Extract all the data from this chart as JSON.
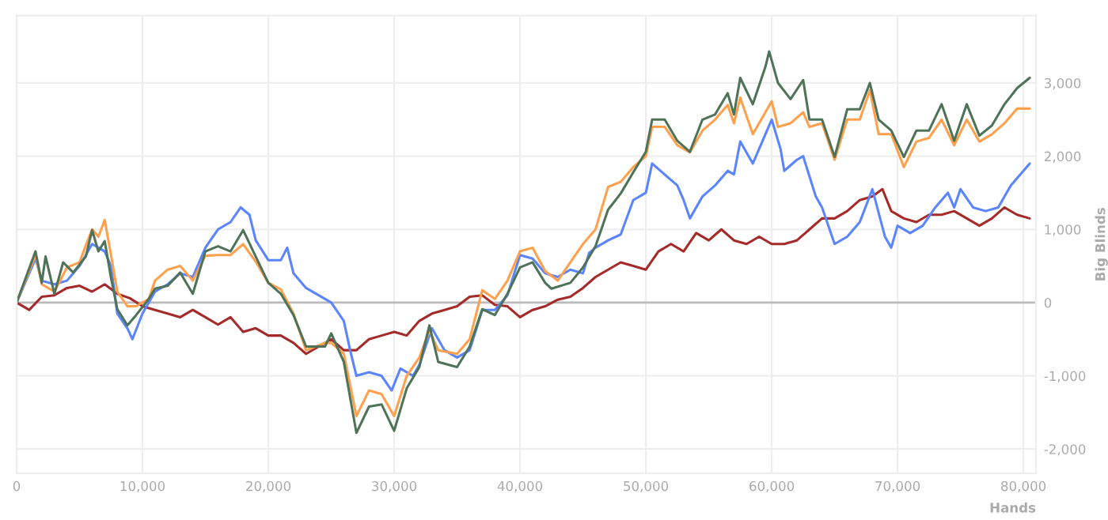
{
  "chart_data": {
    "type": "line",
    "xlabel": "Hands",
    "ylabel": "Big Blinds",
    "xlim": [
      0,
      81000
    ],
    "ylim": [
      -2330,
      3920
    ],
    "xticks": [
      0,
      {
        "value": 10000,
        "label": "10,000"
      },
      {
        "value": 20000,
        "label": "20,000"
      },
      {
        "value": 30000,
        "label": "30,000"
      },
      {
        "value": 40000,
        "label": "40,000"
      },
      {
        "value": 50000,
        "label": "50,000"
      },
      {
        "value": 60000,
        "label": "60,000"
      },
      {
        "value": 70000,
        "label": "70,000"
      },
      {
        "value": 80000,
        "label": "80,000"
      }
    ],
    "yticks": [
      {
        "value": -2000,
        "label": "-2,000"
      },
      {
        "value": -1000,
        "label": "-1,000"
      },
      0,
      {
        "value": 1000,
        "label": "1,000"
      },
      {
        "value": 2000,
        "label": "2,000"
      },
      {
        "value": 3000,
        "label": "3,000"
      }
    ],
    "grid": true,
    "legend": false,
    "ref_lines": [
      {
        "axis": "y",
        "value": 0,
        "color": "#bbbbbb"
      }
    ],
    "series": [
      {
        "color": "#a52a2a",
        "x": [
          0,
          1000,
          2000,
          3000,
          4000,
          5000,
          6000,
          7000,
          8000,
          9000,
          10000,
          11000,
          12000,
          13000,
          14000,
          15000,
          16000,
          17000,
          18000,
          19000,
          20000,
          21000,
          22000,
          23000,
          24000,
          25000,
          26000,
          27000,
          28000,
          29000,
          30000,
          31000,
          32000,
          33000,
          34000,
          35000,
          36000,
          37000,
          38000,
          39000,
          40000,
          41000,
          42000,
          43000,
          44000,
          45000,
          46000,
          47000,
          48000,
          49000,
          50000,
          51000,
          52000,
          53000,
          54000,
          55000,
          56000,
          57000,
          58000,
          59000,
          60000,
          61000,
          62000,
          63000,
          64000,
          65000,
          66000,
          67000,
          68000,
          68800,
          69500,
          70500,
          71500,
          72500,
          73500,
          74500,
          75500,
          76500,
          77500,
          78500,
          79500,
          80500
        ],
        "values": [
          0,
          -100,
          80,
          100,
          200,
          230,
          150,
          250,
          120,
          60,
          -50,
          -100,
          -150,
          -200,
          -100,
          -200,
          -300,
          -200,
          -400,
          -350,
          -450,
          -450,
          -550,
          -700,
          -600,
          -500,
          -650,
          -650,
          -500,
          -450,
          -400,
          -450,
          -250,
          -150,
          -100,
          -50,
          80,
          100,
          -30,
          -50,
          -200,
          -100,
          -50,
          40,
          80,
          200,
          350,
          450,
          550,
          500,
          450,
          700,
          800,
          700,
          950,
          850,
          1000,
          850,
          800,
          900,
          800,
          800,
          850,
          1000,
          1150,
          1150,
          1250,
          1400,
          1450,
          1550,
          1250,
          1150,
          1100,
          1200,
          1200,
          1250,
          1150,
          1050,
          1150,
          1300,
          1200,
          1150
        ]
      },
      {
        "color": "#5b84ff",
        "x": [
          0,
          1500,
          2000,
          3000,
          4000,
          5000,
          5500,
          6000,
          6500,
          7000,
          7500,
          8000,
          8800,
          9200,
          10000,
          11000,
          12000,
          13000,
          14000,
          15000,
          16000,
          17000,
          17800,
          18500,
          19000,
          20000,
          21000,
          21500,
          22000,
          23000,
          24000,
          25000,
          26000,
          26500,
          27000,
          28000,
          29000,
          29800,
          30500,
          31500,
          32000,
          33000,
          34000,
          35000,
          36000,
          37000,
          38000,
          39000,
          40000,
          41000,
          42000,
          43000,
          44000,
          45000,
          45500,
          46000,
          47000,
          48000,
          49000,
          50000,
          50500,
          51500,
          52500,
          53000,
          53500,
          54500,
          55500,
          56500,
          57000,
          57500,
          58500,
          59500,
          60000,
          60700,
          61000,
          62000,
          62500,
          63500,
          64000,
          65000,
          66000,
          67000,
          68000,
          69000,
          69500,
          70000,
          71000,
          72000,
          73000,
          74000,
          74500,
          75000,
          76000,
          77000,
          78000,
          79000,
          80500
        ],
        "values": [
          0,
          600,
          300,
          250,
          300,
          500,
          650,
          800,
          750,
          700,
          500,
          -150,
          -350,
          -500,
          -150,
          150,
          250,
          400,
          350,
          750,
          1000,
          1100,
          1300,
          1200,
          850,
          580,
          580,
          750,
          400,
          200,
          100,
          0,
          -250,
          -650,
          -1000,
          -950,
          -1000,
          -1200,
          -900,
          -1000,
          -850,
          -350,
          -650,
          -750,
          -650,
          -100,
          -100,
          100,
          650,
          600,
          400,
          350,
          450,
          400,
          680,
          750,
          850,
          930,
          1400,
          1500,
          1900,
          1750,
          1600,
          1400,
          1150,
          1450,
          1600,
          1800,
          1750,
          2200,
          1900,
          2300,
          2500,
          2100,
          1800,
          1950,
          2000,
          1450,
          1300,
          800,
          900,
          1100,
          1550,
          900,
          750,
          1050,
          950,
          1050,
          1300,
          1500,
          1300,
          1550,
          1300,
          1250,
          1300,
          1600,
          1900
        ]
      },
      {
        "color": "#ffa04d",
        "x": [
          0,
          1500,
          2000,
          3000,
          4000,
          5000,
          5500,
          6000,
          6500,
          7000,
          7500,
          8000,
          8800,
          9500,
          10500,
          11000,
          12000,
          13000,
          14000,
          15000,
          16000,
          17000,
          18000,
          19000,
          20000,
          21000,
          22000,
          23000,
          24500,
          25000,
          26000,
          27000,
          28000,
          29000,
          30000,
          31000,
          32000,
          32800,
          33500,
          35000,
          36000,
          37000,
          38000,
          39000,
          40000,
          41000,
          42000,
          43000,
          44000,
          45000,
          46000,
          47000,
          48000,
          49000,
          50000,
          50500,
          51500,
          52500,
          53500,
          54500,
          55500,
          56500,
          57000,
          57500,
          58500,
          59500,
          60000,
          60500,
          61500,
          62500,
          63000,
          64000,
          65000,
          66000,
          67000,
          67800,
          68500,
          69500,
          70500,
          71500,
          72500,
          73500,
          74500,
          75500,
          76500,
          77500,
          78500,
          79500,
          80500
        ],
        "values": [
          0,
          650,
          250,
          150,
          480,
          550,
          780,
          1000,
          900,
          1130,
          650,
          150,
          -50,
          -50,
          50,
          300,
          450,
          500,
          300,
          640,
          650,
          650,
          800,
          560,
          270,
          180,
          -150,
          -650,
          -550,
          -550,
          -700,
          -1550,
          -1200,
          -1250,
          -1550,
          -1000,
          -750,
          -380,
          -650,
          -700,
          -500,
          170,
          50,
          300,
          700,
          750,
          430,
          300,
          550,
          800,
          1000,
          1580,
          1650,
          1850,
          2000,
          2400,
          2400,
          2150,
          2050,
          2350,
          2500,
          2700,
          2450,
          2800,
          2300,
          2600,
          2750,
          2400,
          2450,
          2600,
          2400,
          2450,
          1950,
          2500,
          2500,
          2900,
          2300,
          2300,
          1850,
          2200,
          2250,
          2500,
          2150,
          2500,
          2200,
          2300,
          2450,
          2650,
          2650
        ]
      },
      {
        "color": "#4f7358",
        "x": [
          0,
          1500,
          2000,
          2300,
          3000,
          3700,
          4500,
          5500,
          6000,
          6500,
          7000,
          7500,
          8000,
          8800,
          9500,
          10500,
          11000,
          12000,
          13000,
          14000,
          15000,
          16000,
          17000,
          18000,
          19000,
          20000,
          21000,
          22000,
          23000,
          24500,
          25000,
          26000,
          27000,
          28000,
          29000,
          30000,
          31000,
          32000,
          32800,
          33500,
          35000,
          36000,
          37000,
          38000,
          39000,
          40000,
          41000,
          42000,
          42500,
          44000,
          45000,
          46000,
          47000,
          48000,
          49000,
          50000,
          50500,
          51500,
          52500,
          53500,
          54500,
          55500,
          56500,
          57000,
          57500,
          58500,
          59500,
          59800,
          60500,
          61500,
          62500,
          63000,
          64000,
          65000,
          66000,
          67000,
          67800,
          68500,
          69500,
          70500,
          71500,
          72500,
          73500,
          74500,
          75500,
          76500,
          77500,
          78500,
          79500,
          80500
        ],
        "values": [
          0,
          700,
          270,
          630,
          120,
          550,
          410,
          630,
          990,
          700,
          840,
          340,
          -90,
          -310,
          -170,
          50,
          190,
          230,
          410,
          120,
          700,
          770,
          700,
          990,
          630,
          270,
          120,
          -170,
          -600,
          -600,
          -420,
          -810,
          -1780,
          -1420,
          -1390,
          -1750,
          -1170,
          -880,
          -310,
          -810,
          -880,
          -600,
          -90,
          -170,
          120,
          480,
          550,
          270,
          190,
          270,
          480,
          770,
          1270,
          1490,
          1780,
          2060,
          2500,
          2500,
          2210,
          2060,
          2500,
          2570,
          2860,
          2570,
          3070,
          2710,
          3220,
          3430,
          3000,
          2780,
          3040,
          2500,
          2500,
          1990,
          2640,
          2640,
          3000,
          2500,
          2350,
          1990,
          2350,
          2350,
          2710,
          2210,
          2710,
          2280,
          2420,
          2710,
          2930,
          3070
        ]
      }
    ]
  }
}
